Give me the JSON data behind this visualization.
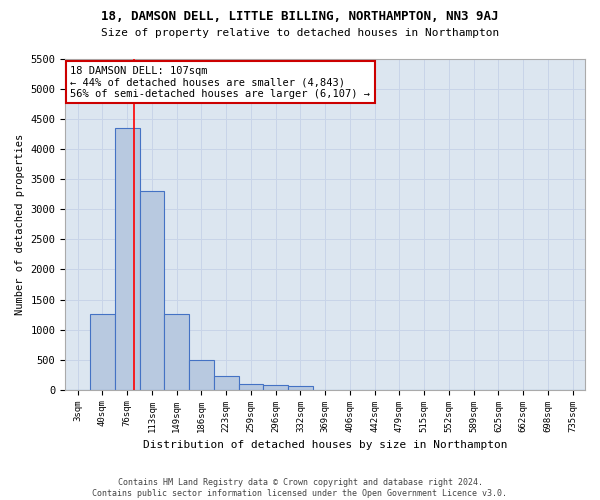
{
  "title1": "18, DAMSON DELL, LITTLE BILLING, NORTHAMPTON, NN3 9AJ",
  "title2": "Size of property relative to detached houses in Northampton",
  "xlabel": "Distribution of detached houses by size in Northampton",
  "ylabel": "Number of detached properties",
  "footer1": "Contains HM Land Registry data © Crown copyright and database right 2024.",
  "footer2": "Contains public sector information licensed under the Open Government Licence v3.0.",
  "bar_categories": [
    "3sqm",
    "40sqm",
    "76sqm",
    "113sqm",
    "149sqm",
    "186sqm",
    "223sqm",
    "259sqm",
    "296sqm",
    "332sqm",
    "369sqm",
    "406sqm",
    "442sqm",
    "479sqm",
    "515sqm",
    "552sqm",
    "589sqm",
    "625sqm",
    "662sqm",
    "698sqm",
    "735sqm"
  ],
  "bar_values": [
    0,
    1260,
    4350,
    3310,
    1260,
    490,
    220,
    95,
    80,
    55,
    0,
    0,
    0,
    0,
    0,
    0,
    0,
    0,
    0,
    0,
    0
  ],
  "bar_color": "#b8c9e0",
  "bar_edge_color": "#4472c4",
  "ylim": [
    0,
    5500
  ],
  "yticks": [
    0,
    500,
    1000,
    1500,
    2000,
    2500,
    3000,
    3500,
    4000,
    4500,
    5000,
    5500
  ],
  "property_label": "18 DAMSON DELL: 107sqm",
  "annotation_line1": "← 44% of detached houses are smaller (4,843)",
  "annotation_line2": "56% of semi-detached houses are larger (6,107) →",
  "vline_x_idx": 2.27,
  "annotation_box_color": "#ffffff",
  "annotation_border_color": "#cc0000",
  "grid_color": "#c8d4e8",
  "background_color": "#dce6f0",
  "fig_background": "#ffffff"
}
